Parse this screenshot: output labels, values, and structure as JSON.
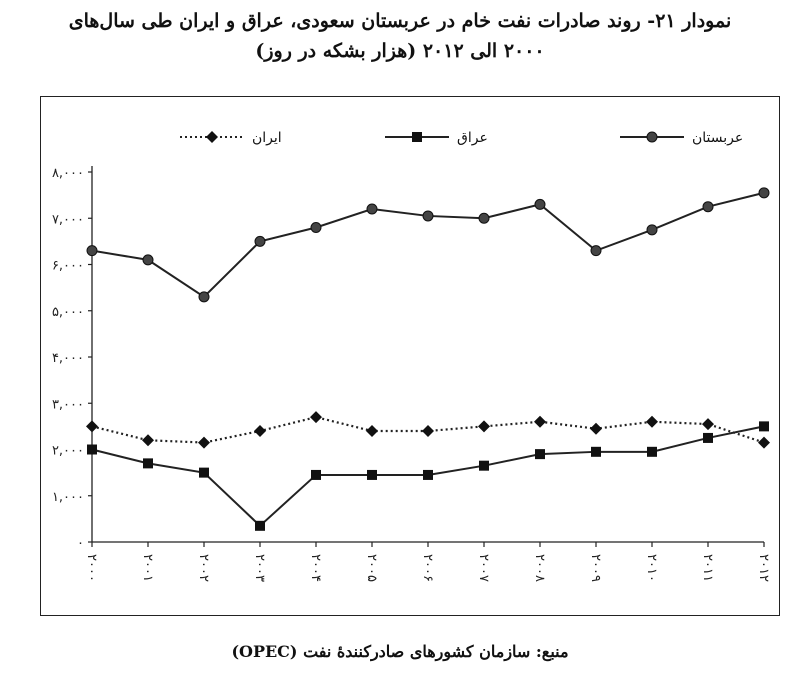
{
  "title": {
    "line1": "نمودار ۲۱- روند صادرات نفت خام در عربستان سعودی، عراق و ایران طی سال‌های",
    "line2": "۲۰۰۰ الی ۲۰۱۲ (هزار بشکه در روز)"
  },
  "source": "منبع: سازمان کشورهای صادرکنندهٔ نفت (OPEC)",
  "chart_data": {
    "type": "line",
    "categories": [
      "۲۰۰۰",
      "۲۰۰۱",
      "۲۰۰۲",
      "۲۰۰۳",
      "۲۰۰۴",
      "۲۰۰۵",
      "۲۰۰۶",
      "۲۰۰۷",
      "۲۰۰۸",
      "۲۰۰۹",
      "۲۰۱۰",
      "۲۰۱۱",
      "۲۰۱۲"
    ],
    "ylim": [
      0,
      8000
    ],
    "yticks": [
      0,
      1000,
      2000,
      3000,
      4000,
      5000,
      6000,
      7000,
      8000
    ],
    "ytick_labels": [
      "۰",
      "۱,۰۰۰",
      "۲,۰۰۰",
      "۳,۰۰۰",
      "۴,۰۰۰",
      "۵,۰۰۰",
      "۶,۰۰۰",
      "۷,۰۰۰",
      "۸,۰۰۰"
    ],
    "legend_position": "top",
    "grid": false,
    "series": [
      {
        "name": "عربستان",
        "marker": "circle",
        "style": "solid",
        "color": "#222222",
        "values": [
          6300,
          6100,
          5300,
          6500,
          6800,
          7200,
          7050,
          7000,
          7300,
          6300,
          6750,
          7250,
          7550
        ]
      },
      {
        "name": "عراق",
        "marker": "square",
        "style": "solid",
        "color": "#222222",
        "values": [
          2000,
          1700,
          1500,
          350,
          1450,
          1450,
          1450,
          1650,
          1900,
          1950,
          1950,
          2250,
          2500
        ]
      },
      {
        "name": "ایران",
        "marker": "diamond",
        "style": "dotted",
        "color": "#222222",
        "values": [
          2500,
          2200,
          2150,
          2400,
          2700,
          2400,
          2400,
          2500,
          2600,
          2450,
          2600,
          2550,
          2150
        ]
      }
    ]
  }
}
